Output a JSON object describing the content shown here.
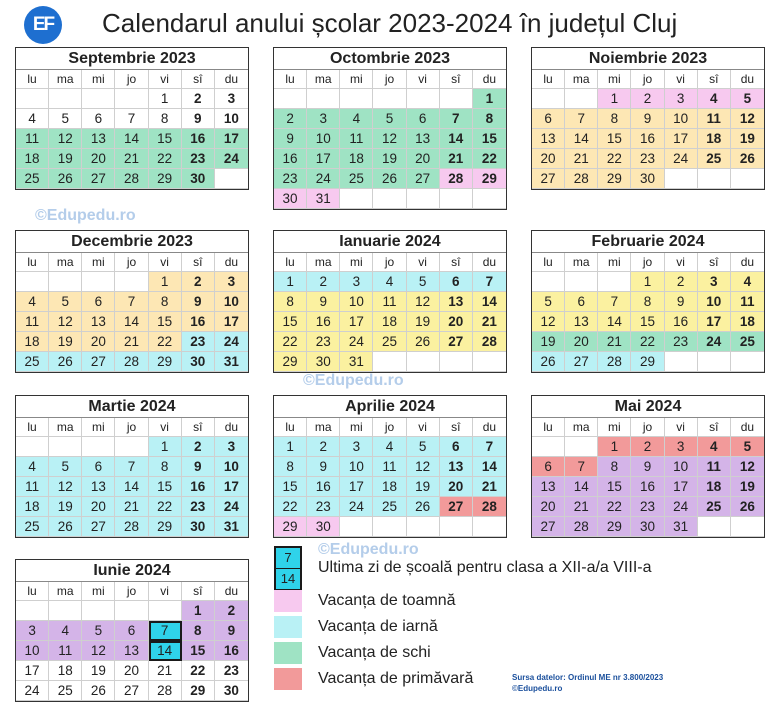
{
  "title": "Calendarul anului școlar 2023-2024 în județul Cluj",
  "logo_text": "EF",
  "weekdays": [
    "lu",
    "ma",
    "mi",
    "jo",
    "vi",
    "sî",
    "du"
  ],
  "watermark": "©Edupedu.ro",
  "colors": {
    "last_day": "#2fd3ea",
    "autumn_vacation": "#f7c9ef",
    "winter_vacation": "#b9f1f5",
    "ski_vacation": "#9fe3c4",
    "spring_vacation": "#f29a9a",
    "module_1": "#9fe3c4",
    "module_2": "#fde7b4",
    "module_3": "#fbf1a0",
    "module_4": "#b9f1f5",
    "module_5": "#d4b4e8"
  },
  "legend": {
    "last_day_numbers": [
      "7",
      "14"
    ],
    "items": [
      {
        "label": "Ultima zi de școală pentru clasa a XII-a/a VIII-a",
        "color": "last"
      },
      {
        "label": "Vacanța de toamnă",
        "color": "#f7c9ef"
      },
      {
        "label": "Vacanța de iarnă",
        "color": "#b9f1f5"
      },
      {
        "label": "Vacanța de schi",
        "color": "#9fe3c4"
      },
      {
        "label": "Vacanța de primăvară",
        "color": "#f29a9a"
      }
    ]
  },
  "source": [
    "Sursa datelor: Ordinul ME nr 3.800/2023",
    "©Edupedu.ro"
  ],
  "months": [
    {
      "name": "Septembrie 2023",
      "offset": 4,
      "days": 30,
      "colors": [
        [
          "none",
          1,
          10
        ],
        [
          "g",
          11,
          30
        ]
      ]
    },
    {
      "name": "Octombrie 2023",
      "offset": 6,
      "days": 31,
      "colors": [
        [
          "g",
          1,
          27
        ],
        [
          "p",
          28,
          31
        ]
      ]
    },
    {
      "name": "Noiembrie 2023",
      "offset": 2,
      "days": 30,
      "colors": [
        [
          "p",
          1,
          5
        ],
        [
          "o",
          6,
          30
        ]
      ]
    },
    {
      "name": "Decembrie 2023",
      "offset": 4,
      "days": 31,
      "colors": [
        [
          "o",
          1,
          22
        ],
        [
          "c",
          23,
          31
        ]
      ]
    },
    {
      "name": "Ianuarie 2024",
      "offset": 0,
      "days": 31,
      "colors": [
        [
          "c",
          1,
          7
        ],
        [
          "y",
          8,
          31
        ]
      ]
    },
    {
      "name": "Februarie 2024",
      "offset": 3,
      "days": 29,
      "colors": [
        [
          "y",
          1,
          18
        ],
        [
          "g",
          19,
          25
        ],
        [
          "c",
          26,
          29
        ]
      ]
    },
    {
      "name": "Martie 2024",
      "offset": 4,
      "days": 31,
      "colors": [
        [
          "c",
          1,
          31
        ]
      ]
    },
    {
      "name": "Aprilie 2024",
      "offset": 0,
      "days": 30,
      "colors": [
        [
          "c",
          1,
          26
        ],
        [
          "r",
          27,
          28
        ],
        [
          "p",
          29,
          30
        ]
      ]
    },
    {
      "name": "Mai 2024",
      "offset": 2,
      "days": 31,
      "colors": [
        [
          "r",
          1,
          7
        ],
        [
          "l",
          8,
          31
        ]
      ]
    },
    {
      "name": "Iunie 2024",
      "offset": 5,
      "days": 30,
      "colors": [
        [
          "l",
          1,
          6
        ],
        [
          "last",
          7,
          7
        ],
        [
          "l",
          8,
          13
        ],
        [
          "last",
          14,
          14
        ],
        [
          "l",
          15,
          16
        ],
        [
          "none",
          17,
          30
        ]
      ]
    }
  ]
}
